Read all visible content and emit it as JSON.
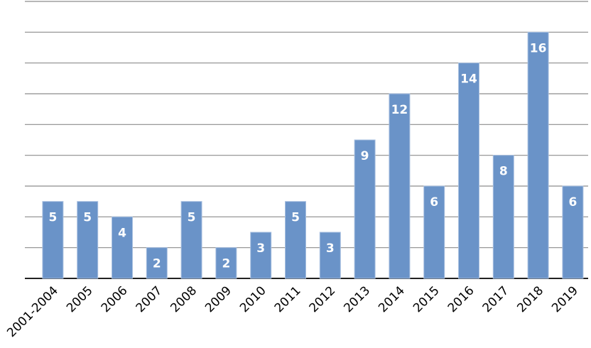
{
  "chart_data": {
    "type": "bar",
    "categories": [
      "2001-2004",
      "2005",
      "2006",
      "2007",
      "2008",
      "2009",
      "2010",
      "2011",
      "2012",
      "2013",
      "2014",
      "2015",
      "2016",
      "2017",
      "2018",
      "2019"
    ],
    "values": [
      5,
      5,
      4,
      2,
      5,
      2,
      3,
      5,
      3,
      9,
      12,
      6,
      14,
      8,
      16,
      6
    ],
    "title": "",
    "xlabel": "",
    "ylabel": "",
    "ylim": [
      0,
      18
    ],
    "grid_step": 2,
    "grid": true,
    "y_tick_labels_visible": false,
    "x_tick_rotation_deg": -45,
    "data_labels": "inside-top",
    "bar_color": "#6a93c8",
    "label_color": "#ffffff",
    "legend": "none"
  }
}
